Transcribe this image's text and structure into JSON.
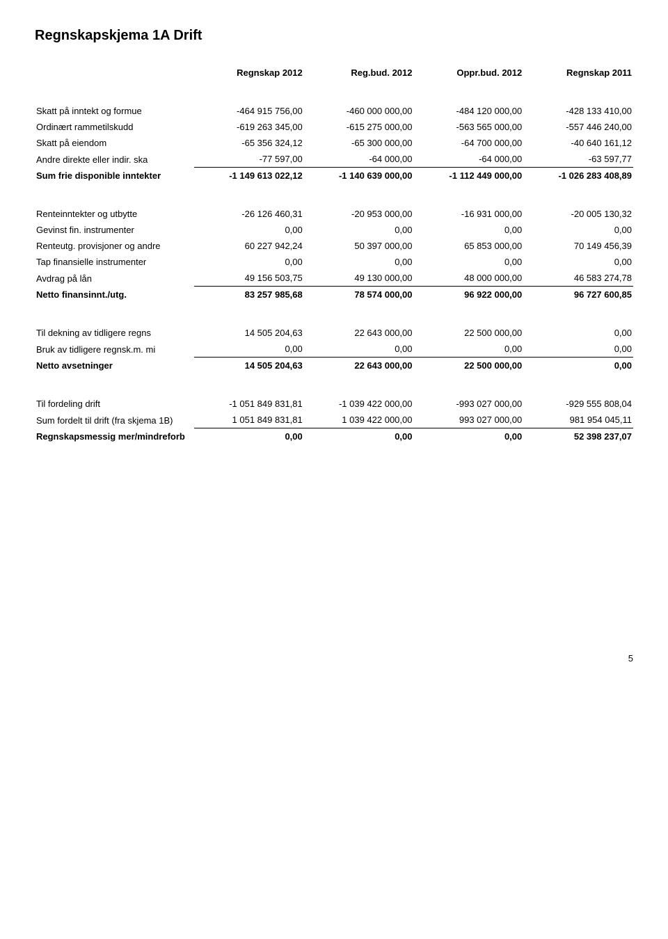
{
  "title": "Regnskapskjema 1A Drift",
  "headers": {
    "col1": "Regnskap 2012",
    "col2": "Reg.bud. 2012",
    "col3": "Oppr.bud. 2012",
    "col4": "Regnskap 2011"
  },
  "section1": [
    {
      "label": "Skatt på inntekt og formue",
      "c1": "-464 915 756,00",
      "c2": "-460 000 000,00",
      "c3": "-484 120 000,00",
      "c4": "-428 133 410,00"
    },
    {
      "label": "Ordinært rammetilskudd",
      "c1": "-619 263 345,00",
      "c2": "-615 275 000,00",
      "c3": "-563 565 000,00",
      "c4": "-557 446 240,00"
    },
    {
      "label": "Skatt på eiendom",
      "c1": "-65 356 324,12",
      "c2": "-65 300 000,00",
      "c3": "-64 700 000,00",
      "c4": "-40 640 161,12"
    },
    {
      "label": "Andre direkte eller indir. ska",
      "c1": "-77 597,00",
      "c2": "-64 000,00",
      "c3": "-64 000,00",
      "c4": "-63 597,77",
      "underline": true
    }
  ],
  "sum1": {
    "label": "Sum frie disponible inntekter",
    "c1": "-1 149 613 022,12",
    "c2": "-1 140 639 000,00",
    "c3": "-1 112 449 000,00",
    "c4": "-1 026 283 408,89"
  },
  "section2": [
    {
      "label": "Renteinntekter og utbytte",
      "c1": "-26 126 460,31",
      "c2": "-20 953 000,00",
      "c3": "-16 931 000,00",
      "c4": "-20 005 130,32"
    },
    {
      "label": "Gevinst fin. instrumenter",
      "c1": "0,00",
      "c2": "0,00",
      "c3": "0,00",
      "c4": "0,00"
    },
    {
      "label": "Renteutg. provisjoner og andre",
      "c1": "60 227 942,24",
      "c2": "50 397 000,00",
      "c3": "65 853 000,00",
      "c4": "70 149 456,39"
    },
    {
      "label": "Tap finansielle instrumenter",
      "c1": "0,00",
      "c2": "0,00",
      "c3": "0,00",
      "c4": "0,00"
    },
    {
      "label": "Avdrag på lån",
      "c1": "49 156 503,75",
      "c2": "49 130 000,00",
      "c3": "48 000 000,00",
      "c4": "46 583 274,78",
      "underline": true
    }
  ],
  "sum2": {
    "label": "Netto finansinnt./utg.",
    "c1": "83 257 985,68",
    "c2": "78 574 000,00",
    "c3": "96 922 000,00",
    "c4": "96 727 600,85"
  },
  "section3": [
    {
      "label": "Til dekning av tidligere regns",
      "c1": "14 505 204,63",
      "c2": "22 643 000,00",
      "c3": "22 500 000,00",
      "c4": "0,00"
    },
    {
      "label": "Bruk av tidligere regnsk.m. mi",
      "c1": "0,00",
      "c2": "0,00",
      "c3": "0,00",
      "c4": "0,00",
      "underline": true
    }
  ],
  "sum3": {
    "label": "Netto avsetninger",
    "c1": "14 505 204,63",
    "c2": "22 643 000,00",
    "c3": "22 500 000,00",
    "c4": "0,00"
  },
  "section4": [
    {
      "label": "Til fordeling drift",
      "c1": "-1 051 849 831,81",
      "c2": "-1 039 422 000,00",
      "c3": "-993 027 000,00",
      "c4": "-929 555 808,04"
    },
    {
      "label": "Sum fordelt til drift (fra skjema 1B)",
      "c1": "1 051 849 831,81",
      "c2": "1 039 422 000,00",
      "c3": "993 027 000,00",
      "c4": "981 954 045,11",
      "underline": true
    }
  ],
  "sum4": {
    "label": "Regnskapsmessig mer/mindreforb",
    "c1": "0,00",
    "c2": "0,00",
    "c3": "0,00",
    "c4": "52 398 237,07"
  },
  "page_number": "5",
  "colors": {
    "text": "#000000",
    "background": "#ffffff",
    "border": "#000000"
  },
  "fonts": {
    "title_size": 20,
    "body_size": 13,
    "family": "Verdana"
  }
}
